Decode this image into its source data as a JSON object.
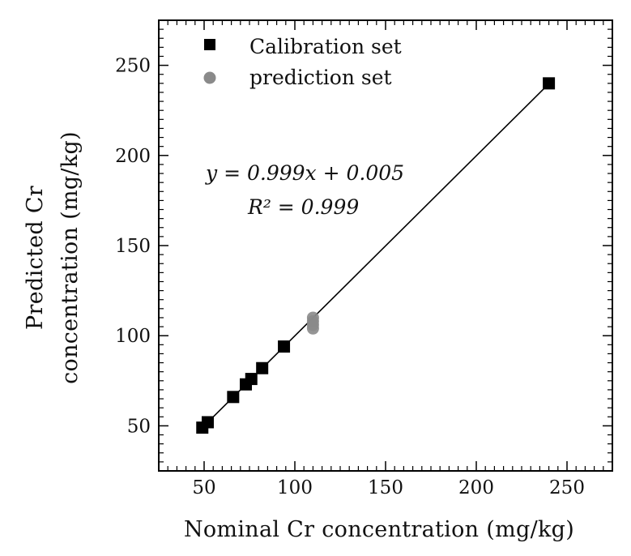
{
  "chart_data": {
    "type": "scatter",
    "xlabel": "Nominal Cr concentration (mg/kg)",
    "ylabel": [
      "Predicted Cr",
      "concentration (mg/kg)"
    ],
    "xlim": [
      25,
      275
    ],
    "ylim": [
      25,
      275
    ],
    "x_ticks": [
      50,
      100,
      150,
      200,
      250
    ],
    "y_ticks": [
      50,
      100,
      150,
      200,
      250
    ],
    "legend_position": "top-left",
    "series": [
      {
        "name": "Calibration set",
        "marker": "square",
        "color": "#000000",
        "points": [
          [
            49,
            49
          ],
          [
            52,
            52
          ],
          [
            66,
            66
          ],
          [
            73,
            73
          ],
          [
            76,
            76
          ],
          [
            82,
            82
          ],
          [
            94,
            94
          ],
          [
            240,
            240
          ]
        ]
      },
      {
        "name": "prediction set",
        "marker": "circle",
        "color": "#8a8a8a",
        "points": [
          [
            110,
            104
          ],
          [
            110,
            106
          ],
          [
            110,
            108
          ],
          [
            110,
            110
          ]
        ]
      }
    ],
    "fit_line": {
      "slope": 0.999,
      "intercept": 0.005,
      "x_range": [
        48,
        240
      ],
      "color": "#000000"
    },
    "annotation": {
      "equation": "y = 0.999x + 0.005",
      "r2": "R² = 0.999"
    }
  }
}
